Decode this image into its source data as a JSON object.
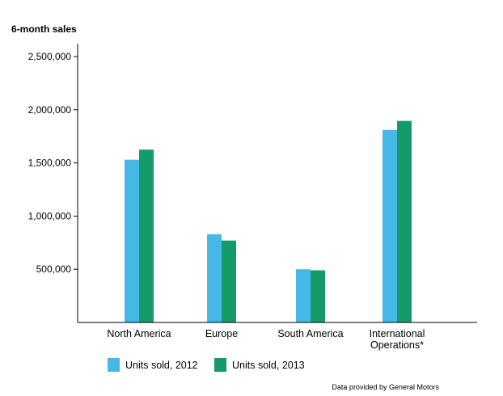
{
  "chart_data": {
    "type": "bar",
    "title": "6-month sales",
    "xlabel": "",
    "ylabel": "",
    "ylim": [
      0,
      2500000
    ],
    "yticks": [
      500000,
      1000000,
      1500000,
      2000000,
      2500000
    ],
    "ytick_labels": [
      "500,000",
      "1,000,000",
      "1,500,000",
      "2,000,000",
      "2,500,000"
    ],
    "categories": [
      "North America",
      "Europe",
      "South America",
      "International Operations*"
    ],
    "category_lines": [
      [
        "North America"
      ],
      [
        "Europe"
      ],
      [
        "South America"
      ],
      [
        "International",
        "Operations*"
      ]
    ],
    "series": [
      {
        "name": "Units sold, 2012",
        "color": "#45b8e8",
        "values": [
          1530000,
          830000,
          500000,
          1810000
        ]
      },
      {
        "name": "Units sold, 2013",
        "color": "#159a6a",
        "values": [
          1625000,
          770000,
          490000,
          1895000
        ]
      }
    ],
    "source": "Data provided by General Motors",
    "grid": false,
    "legend_position": "bottom-left"
  }
}
